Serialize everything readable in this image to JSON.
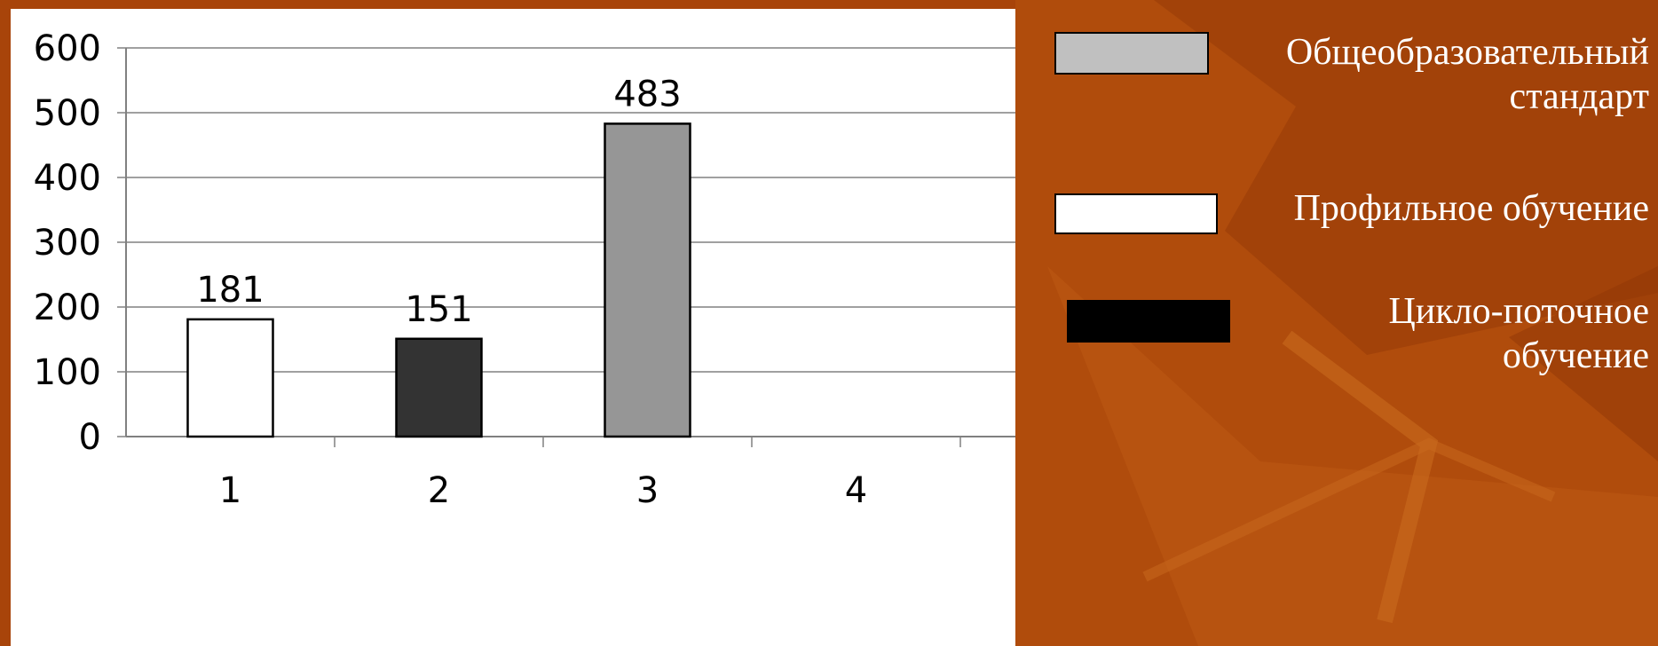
{
  "colors": {
    "background": "#a8440a",
    "plot_area": "#ffffff",
    "grid": "#808080",
    "legend_text": "#ffffff"
  },
  "chart_data": {
    "type": "bar",
    "categories": [
      "1",
      "2",
      "3",
      "4"
    ],
    "values": [
      181,
      151,
      483,
      null
    ],
    "bar_colors": [
      "#ffffff",
      "#333333",
      "#969696",
      null
    ],
    "data_labels": [
      "181",
      "151",
      "483",
      ""
    ],
    "y_ticks": [
      "0",
      "100",
      "200",
      "300",
      "400",
      "500",
      "600"
    ],
    "ylim": [
      0,
      600
    ],
    "grid": true,
    "title": "",
    "xlabel": "",
    "ylabel": "",
    "legend_position": "right",
    "legend": [
      {
        "label": "Общеобразовательный стандарт",
        "line1": "Общеобразовательный",
        "line2": "стандарт",
        "color": "#c0c0c0"
      },
      {
        "label": "Профильное обучение",
        "line1": "Профильное обучение",
        "line2": "",
        "color": "#ffffff"
      },
      {
        "label": "Цикло-поточное обучение",
        "line1": "Цикло-поточное",
        "line2": "обучение",
        "color": "#000000"
      }
    ]
  }
}
